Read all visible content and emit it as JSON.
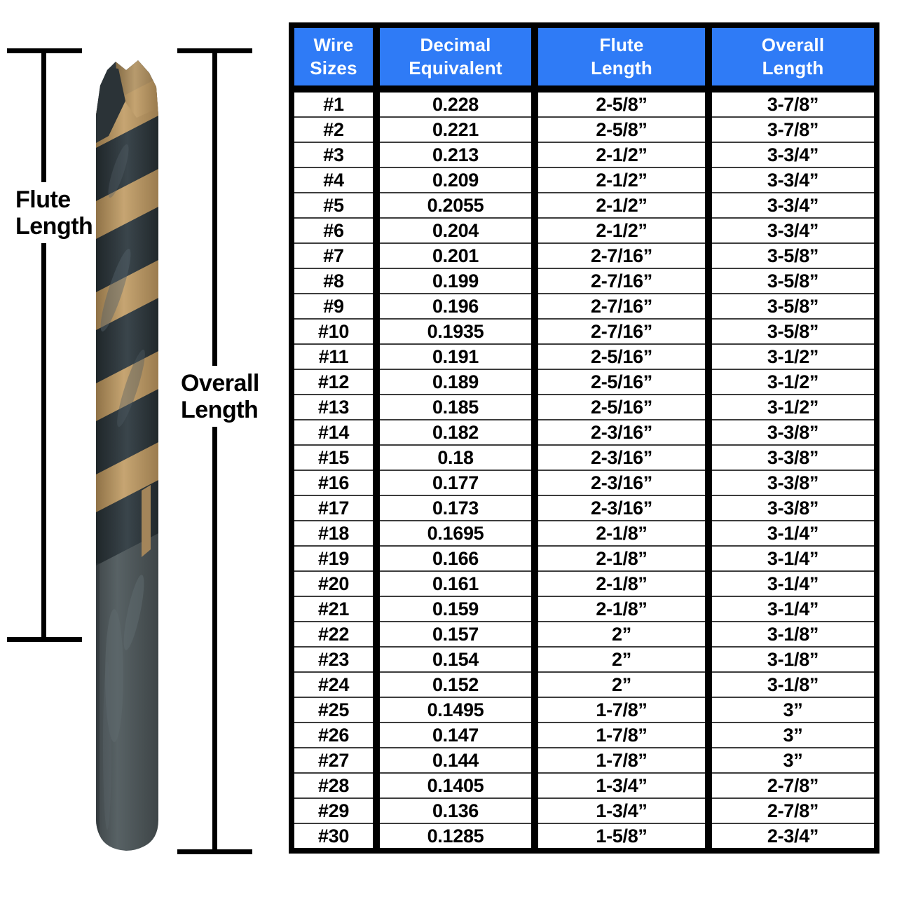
{
  "annotations": {
    "flute_label_line1": "Flute",
    "flute_label_line2": "Length",
    "overall_label_line1": "Overall",
    "overall_label_line2": "Length"
  },
  "chart_data": {
    "type": "table",
    "columns": [
      "Wire Sizes",
      "Decimal Equivalent",
      "Flute Length",
      "Overall Length"
    ],
    "header_lines": [
      [
        "Wire",
        "Sizes"
      ],
      [
        "Decimal",
        "Equivalent"
      ],
      [
        "Flute",
        "Length"
      ],
      [
        "Overall",
        "Length"
      ]
    ],
    "rows": [
      [
        "#1",
        "0.228",
        "2-5/8”",
        "3-7/8”"
      ],
      [
        "#2",
        "0.221",
        "2-5/8”",
        "3-7/8”"
      ],
      [
        "#3",
        "0.213",
        "2-1/2”",
        "3-3/4”"
      ],
      [
        "#4",
        "0.209",
        "2-1/2”",
        "3-3/4”"
      ],
      [
        "#5",
        "0.2055",
        "2-1/2”",
        "3-3/4”"
      ],
      [
        "#6",
        "0.204",
        "2-1/2”",
        "3-3/4”"
      ],
      [
        "#7",
        "0.201",
        "2-7/16”",
        "3-5/8”"
      ],
      [
        "#8",
        "0.199",
        "2-7/16”",
        "3-5/8”"
      ],
      [
        "#9",
        "0.196",
        "2-7/16”",
        "3-5/8”"
      ],
      [
        "#10",
        "0.1935",
        "2-7/16”",
        "3-5/8”"
      ],
      [
        "#11",
        "0.191",
        "2-5/16”",
        "3-1/2”"
      ],
      [
        "#12",
        "0.189",
        "2-5/16”",
        "3-1/2”"
      ],
      [
        "#13",
        "0.185",
        "2-5/16”",
        "3-1/2”"
      ],
      [
        "#14",
        "0.182",
        "2-3/16”",
        "3-3/8”"
      ],
      [
        "#15",
        "0.18",
        "2-3/16”",
        "3-3/8”"
      ],
      [
        "#16",
        "0.177",
        "2-3/16”",
        "3-3/8”"
      ],
      [
        "#17",
        "0.173",
        "2-3/16”",
        "3-3/8”"
      ],
      [
        "#18",
        "0.1695",
        "2-1/8”",
        "3-1/4”"
      ],
      [
        "#19",
        "0.166",
        "2-1/8”",
        "3-1/4”"
      ],
      [
        "#20",
        "0.161",
        "2-1/8”",
        "3-1/4”"
      ],
      [
        "#21",
        "0.159",
        "2-1/8”",
        "3-1/4”"
      ],
      [
        "#22",
        "0.157",
        "2”",
        "3-1/8”"
      ],
      [
        "#23",
        "0.154",
        "2”",
        "3-1/8”"
      ],
      [
        "#24",
        "0.152",
        "2”",
        "3-1/8”"
      ],
      [
        "#25",
        "0.1495",
        "1-7/8”",
        "3”"
      ],
      [
        "#26",
        "0.147",
        "1-7/8”",
        "3”"
      ],
      [
        "#27",
        "0.144",
        "1-7/8”",
        "3”"
      ],
      [
        "#28",
        "0.1405",
        "1-3/4”",
        "2-7/8”"
      ],
      [
        "#29",
        "0.136",
        "1-3/4”",
        "2-7/8”"
      ],
      [
        "#30",
        "0.1285",
        "1-5/8”",
        "2-3/4”"
      ]
    ],
    "layout": {
      "header_position": "top",
      "grid": "thick black column separators, thin gray row dividers"
    }
  },
  "colors": {
    "header_bg": "#2F7BF6",
    "header_text": "#FFFFFF",
    "body_text": "#000000",
    "table_border": "#000000",
    "row_divider": "#3D3D3D",
    "dimension_line": "#000000",
    "bit_gold": "#B6945F",
    "bit_dark": "#262E31",
    "bit_shank": "#4A5254"
  }
}
